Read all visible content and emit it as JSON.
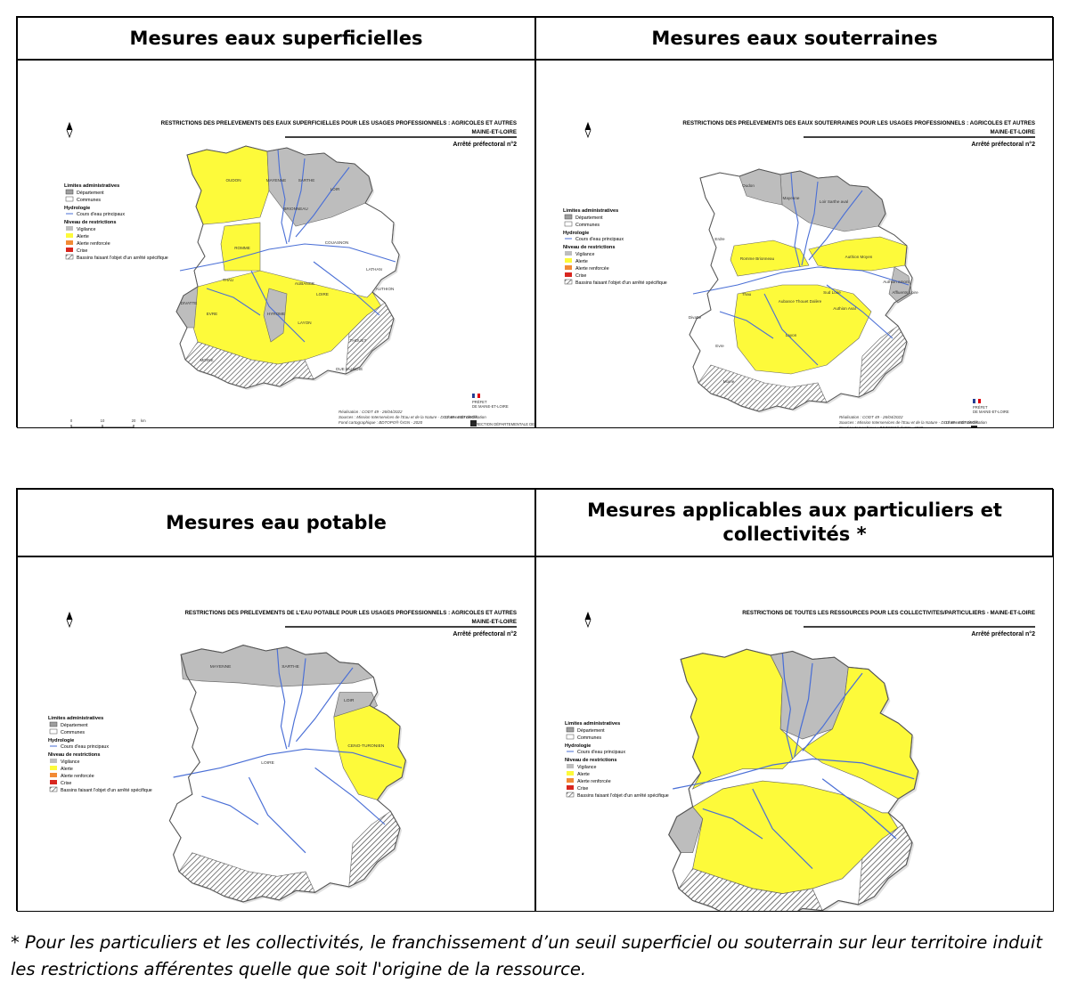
{
  "colors": {
    "vigilance": "#bdbdbd",
    "alerte": "#fdfa3a",
    "alerte_renforcee": "#f28a35",
    "crise": "#d8261f",
    "communes": "#ffffff",
    "rivers": "#4a6fd6"
  },
  "panels": [
    {
      "heading": "Mesures eaux superficielles",
      "map_title_1": "RESTRICTIONS DES PRELEVEMENTS DES EAUX SUPERFICIELLES POUR LES USAGES PROFESSIONNELS : AGRICOLES ET AUTRES",
      "map_title_2": "MAINE-ET-LOIRE",
      "arrete": "Arrêté préfectoral n°2",
      "place_labels": [
        "OUDON",
        "MAYENNE",
        "SARTHE",
        "LOIR",
        "BRIONNEAU",
        "COUASNON",
        "ROMME",
        "THAU",
        "AUBANCE",
        "LOIRE",
        "LATHAN",
        "AUTHION",
        "DIVATTE",
        "EVRE",
        "HYROME",
        "LAYON",
        "THOUET",
        "DUE DU BOIS",
        "MOINE"
      ]
    },
    {
      "heading": "Mesures eaux souterraines",
      "map_title_1": "RESTRICTIONS DES PRELEVEMENTS DES EAUX SOUTERRAINES POUR LES USAGES PROFESSIONNELS : AGRICOLES ET AUTRES",
      "map_title_2": "MAINE-ET-LOIRE",
      "arrete": "Arrêté préfectoral n°2",
      "place_labels": [
        "Oudon",
        "Mayenne",
        "Loir Sarthe aval",
        "Erdre",
        "Romme Brionneau",
        "Authion Moyen",
        "Authion amont",
        "Affluents Loire",
        "Thau",
        "Divatte",
        "Aubance Thouet Dalère",
        "Sud Loire",
        "Authion Aval",
        "Layon",
        "Evre",
        "Moine"
      ]
    },
    {
      "heading": "Mesures eau potable",
      "map_title_1": "RESTRICTIONS DES PRELEVEMENTS DE L'EAU POTABLE POUR LES USAGES PROFESSIONNELS : AGRICOLES ET AUTRES",
      "map_title_2": "MAINE-ET-LOIRE",
      "arrete": "Arrêté préfectoral n°2",
      "place_labels": [
        "MAYENNE",
        "SARTHE",
        "LOIR",
        "CENO-TURONIEN",
        "LOIRE"
      ]
    },
    {
      "heading": "Mesures applicables aux particuliers et collectivités *",
      "map_title_1": "RESTRICTIONS DE TOUTES LES RESSOURCES POUR LES COLLECTIVITES/PARTICULIERS - MAINE-ET-LOIRE",
      "map_title_2": "",
      "arrete": "Arrêté préfectoral n°2",
      "place_labels": []
    }
  ],
  "legend": {
    "limites_title": "Limites administratives",
    "departement": "Département",
    "communes": "Communes",
    "hydro_title": "Hydrologie",
    "cours": "Cours d'eau principaux",
    "niveau_title": "Niveau de restrictions",
    "vigilance": "Vigilance",
    "alerte": "Alerte",
    "alerte_renforcee": "Alerte renforcée",
    "crise": "Crise",
    "bassins": "Bassins faisant l'objet d'un arrêté spécifique"
  },
  "credits": {
    "realisation": "Réalisation : CODT 49 - 26/04/2022",
    "sources": "Sources : Mission Interservices de l'Eau et de la Nature - DDT 49 - BDTOPO®",
    "fond": "Fond cartographique : BDTOPO® ©IGN - 2020",
    "licence": "Licence de réutilisation",
    "prefet_1": "PRÉFET",
    "prefet_2": "DE MAINE-ET-LOIRE",
    "direction": "DIRECTION DÉPARTEMENTALE DES TERRITOIRES",
    "scale_0": "0",
    "scale_10": "10",
    "scale_20": "20",
    "scale_unit": "km"
  },
  "footnote": "* Pour les particuliers et les collectivités, le franchissement d’un seuil superficiel ou souterrain sur leur territoire induit les restrictions afférentes quelle que soit l'origine de la ressource."
}
